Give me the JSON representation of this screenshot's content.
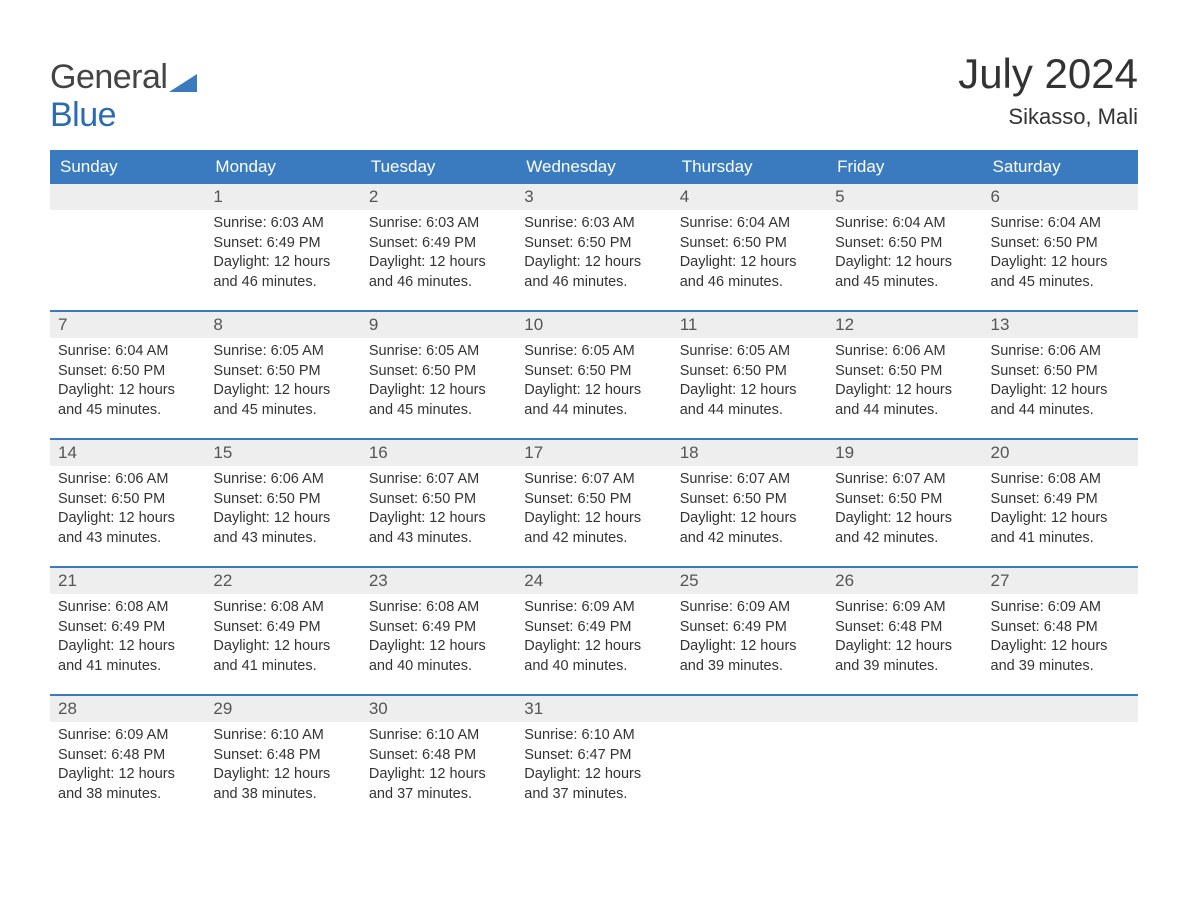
{
  "brand": {
    "part1": "General",
    "part2": "Blue"
  },
  "title": "July 2024",
  "location": "Sikasso, Mali",
  "colors": {
    "header_bg": "#3a7bbf",
    "header_text": "#ffffff",
    "daynum_bg": "#eeeeee",
    "border": "#3a7bbf",
    "body_text": "#333333",
    "logo_gray": "#444444",
    "logo_blue": "#2b6cb0",
    "background": "#ffffff"
  },
  "weekdays": [
    "Sunday",
    "Monday",
    "Tuesday",
    "Wednesday",
    "Thursday",
    "Friday",
    "Saturday"
  ],
  "weeks": [
    [
      {
        "n": "",
        "sunrise": "",
        "sunset": "",
        "daylight": ""
      },
      {
        "n": "1",
        "sunrise": "6:03 AM",
        "sunset": "6:49 PM",
        "daylight": "12 hours and 46 minutes."
      },
      {
        "n": "2",
        "sunrise": "6:03 AM",
        "sunset": "6:49 PM",
        "daylight": "12 hours and 46 minutes."
      },
      {
        "n": "3",
        "sunrise": "6:03 AM",
        "sunset": "6:50 PM",
        "daylight": "12 hours and 46 minutes."
      },
      {
        "n": "4",
        "sunrise": "6:04 AM",
        "sunset": "6:50 PM",
        "daylight": "12 hours and 46 minutes."
      },
      {
        "n": "5",
        "sunrise": "6:04 AM",
        "sunset": "6:50 PM",
        "daylight": "12 hours and 45 minutes."
      },
      {
        "n": "6",
        "sunrise": "6:04 AM",
        "sunset": "6:50 PM",
        "daylight": "12 hours and 45 minutes."
      }
    ],
    [
      {
        "n": "7",
        "sunrise": "6:04 AM",
        "sunset": "6:50 PM",
        "daylight": "12 hours and 45 minutes."
      },
      {
        "n": "8",
        "sunrise": "6:05 AM",
        "sunset": "6:50 PM",
        "daylight": "12 hours and 45 minutes."
      },
      {
        "n": "9",
        "sunrise": "6:05 AM",
        "sunset": "6:50 PM",
        "daylight": "12 hours and 45 minutes."
      },
      {
        "n": "10",
        "sunrise": "6:05 AM",
        "sunset": "6:50 PM",
        "daylight": "12 hours and 44 minutes."
      },
      {
        "n": "11",
        "sunrise": "6:05 AM",
        "sunset": "6:50 PM",
        "daylight": "12 hours and 44 minutes."
      },
      {
        "n": "12",
        "sunrise": "6:06 AM",
        "sunset": "6:50 PM",
        "daylight": "12 hours and 44 minutes."
      },
      {
        "n": "13",
        "sunrise": "6:06 AM",
        "sunset": "6:50 PM",
        "daylight": "12 hours and 44 minutes."
      }
    ],
    [
      {
        "n": "14",
        "sunrise": "6:06 AM",
        "sunset": "6:50 PM",
        "daylight": "12 hours and 43 minutes."
      },
      {
        "n": "15",
        "sunrise": "6:06 AM",
        "sunset": "6:50 PM",
        "daylight": "12 hours and 43 minutes."
      },
      {
        "n": "16",
        "sunrise": "6:07 AM",
        "sunset": "6:50 PM",
        "daylight": "12 hours and 43 minutes."
      },
      {
        "n": "17",
        "sunrise": "6:07 AM",
        "sunset": "6:50 PM",
        "daylight": "12 hours and 42 minutes."
      },
      {
        "n": "18",
        "sunrise": "6:07 AM",
        "sunset": "6:50 PM",
        "daylight": "12 hours and 42 minutes."
      },
      {
        "n": "19",
        "sunrise": "6:07 AM",
        "sunset": "6:50 PM",
        "daylight": "12 hours and 42 minutes."
      },
      {
        "n": "20",
        "sunrise": "6:08 AM",
        "sunset": "6:49 PM",
        "daylight": "12 hours and 41 minutes."
      }
    ],
    [
      {
        "n": "21",
        "sunrise": "6:08 AM",
        "sunset": "6:49 PM",
        "daylight": "12 hours and 41 minutes."
      },
      {
        "n": "22",
        "sunrise": "6:08 AM",
        "sunset": "6:49 PM",
        "daylight": "12 hours and 41 minutes."
      },
      {
        "n": "23",
        "sunrise": "6:08 AM",
        "sunset": "6:49 PM",
        "daylight": "12 hours and 40 minutes."
      },
      {
        "n": "24",
        "sunrise": "6:09 AM",
        "sunset": "6:49 PM",
        "daylight": "12 hours and 40 minutes."
      },
      {
        "n": "25",
        "sunrise": "6:09 AM",
        "sunset": "6:49 PM",
        "daylight": "12 hours and 39 minutes."
      },
      {
        "n": "26",
        "sunrise": "6:09 AM",
        "sunset": "6:48 PM",
        "daylight": "12 hours and 39 minutes."
      },
      {
        "n": "27",
        "sunrise": "6:09 AM",
        "sunset": "6:48 PM",
        "daylight": "12 hours and 39 minutes."
      }
    ],
    [
      {
        "n": "28",
        "sunrise": "6:09 AM",
        "sunset": "6:48 PM",
        "daylight": "12 hours and 38 minutes."
      },
      {
        "n": "29",
        "sunrise": "6:10 AM",
        "sunset": "6:48 PM",
        "daylight": "12 hours and 38 minutes."
      },
      {
        "n": "30",
        "sunrise": "6:10 AM",
        "sunset": "6:48 PM",
        "daylight": "12 hours and 37 minutes."
      },
      {
        "n": "31",
        "sunrise": "6:10 AM",
        "sunset": "6:47 PM",
        "daylight": "12 hours and 37 minutes."
      },
      {
        "n": "",
        "sunrise": "",
        "sunset": "",
        "daylight": ""
      },
      {
        "n": "",
        "sunrise": "",
        "sunset": "",
        "daylight": ""
      },
      {
        "n": "",
        "sunrise": "",
        "sunset": "",
        "daylight": ""
      }
    ]
  ],
  "labels": {
    "sunrise": "Sunrise:",
    "sunset": "Sunset:",
    "daylight": "Daylight:"
  }
}
